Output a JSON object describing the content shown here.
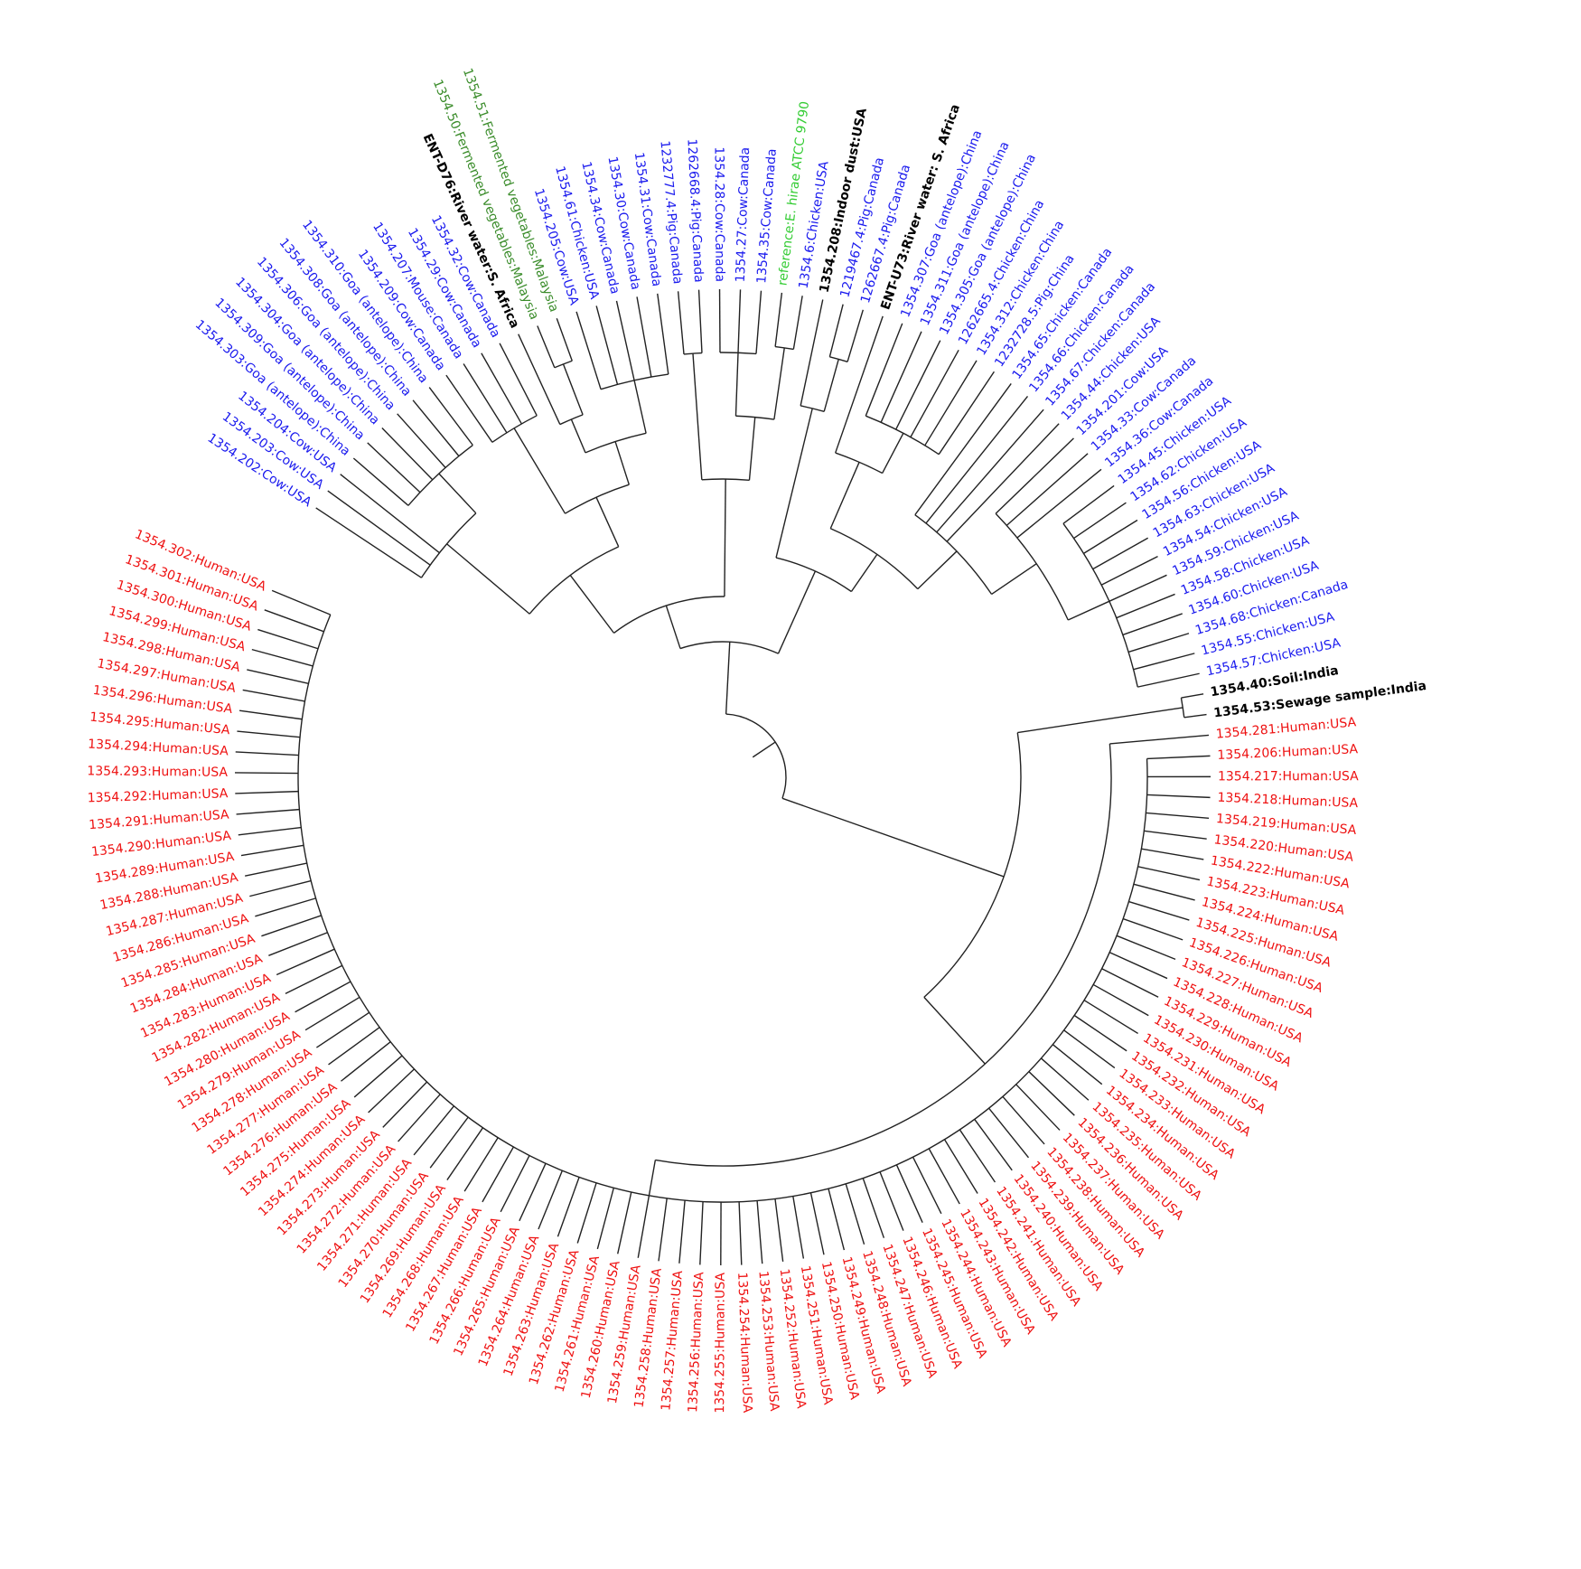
{
  "leaves": [
    {
      "label": "1354.302:Human:USA",
      "color": "#ee1111"
    },
    {
      "label": "1354.301:Human:USA",
      "color": "#ee1111"
    },
    {
      "label": "1354.300:Human:USA",
      "color": "#ee1111"
    },
    {
      "label": "1354.299:Human:USA",
      "color": "#ee1111"
    },
    {
      "label": "1354.298:Human:USA",
      "color": "#ee1111"
    },
    {
      "label": "1354.297:Human:USA",
      "color": "#ee1111"
    },
    {
      "label": "1354.296:Human:USA",
      "color": "#ee1111"
    },
    {
      "label": "1354.295:Human:USA",
      "color": "#ee1111"
    },
    {
      "label": "1354.294:Human:USA",
      "color": "#ee1111"
    },
    {
      "label": "1354.293:Human:USA",
      "color": "#ee1111"
    },
    {
      "label": "1354.292:Human:USA",
      "color": "#ee1111"
    },
    {
      "label": "1354.291:Human:USA",
      "color": "#ee1111"
    },
    {
      "label": "1354.290:Human:USA",
      "color": "#ee1111"
    },
    {
      "label": "1354.289:Human:USA",
      "color": "#ee1111"
    },
    {
      "label": "1354.288:Human:USA",
      "color": "#ee1111"
    },
    {
      "label": "1354.287:Human:USA",
      "color": "#ee1111"
    },
    {
      "label": "1354.286:Human:USA",
      "color": "#ee1111"
    },
    {
      "label": "1354.285:Human:USA",
      "color": "#ee1111"
    },
    {
      "label": "1354.284:Human:USA",
      "color": "#ee1111"
    },
    {
      "label": "1354.283:Human:USA",
      "color": "#ee1111"
    },
    {
      "label": "1354.282:Human:USA",
      "color": "#ee1111"
    },
    {
      "label": "1354.280:Human:USA",
      "color": "#ee1111"
    },
    {
      "label": "1354.279:Human:USA",
      "color": "#ee1111"
    },
    {
      "label": "1354.278:Human:USA",
      "color": "#ee1111"
    },
    {
      "label": "1354.277:Human:USA",
      "color": "#ee1111"
    },
    {
      "label": "1354.276:Human:USA",
      "color": "#ee1111"
    },
    {
      "label": "1354.275:Human:USA",
      "color": "#ee1111"
    },
    {
      "label": "1354.274:Human:USA",
      "color": "#ee1111"
    },
    {
      "label": "1354.273:Human:USA",
      "color": "#ee1111"
    },
    {
      "label": "1354.272:Human:USA",
      "color": "#ee1111"
    },
    {
      "label": "1354.271:Human:USA",
      "color": "#ee1111"
    },
    {
      "label": "1354.270:Human:USA",
      "color": "#ee1111"
    },
    {
      "label": "1354.269:Human:USA",
      "color": "#ee1111"
    },
    {
      "label": "1354.268:Human:USA",
      "color": "#ee1111"
    },
    {
      "label": "1354.267:Human:USA",
      "color": "#ee1111"
    },
    {
      "label": "1354.266:Human:USA",
      "color": "#ee1111"
    },
    {
      "label": "1354.265:Human:USA",
      "color": "#ee1111"
    },
    {
      "label": "1354.264:Human:USA",
      "color": "#ee1111"
    },
    {
      "label": "1354.263:Human:USA",
      "color": "#ee1111"
    },
    {
      "label": "1354.262:Human:USA",
      "color": "#ee1111"
    },
    {
      "label": "1354.261:Human:USA",
      "color": "#ee1111"
    },
    {
      "label": "1354.260:Human:USA",
      "color": "#ee1111"
    },
    {
      "label": "1354.259:Human:USA",
      "color": "#ee1111"
    },
    {
      "label": "1354.258:Human:USA",
      "color": "#ee1111"
    },
    {
      "label": "1354.257:Human:USA",
      "color": "#ee1111"
    },
    {
      "label": "1354.256:Human:USA",
      "color": "#ee1111"
    },
    {
      "label": "1354.255:Human:USA",
      "color": "#ee1111"
    },
    {
      "label": "1354.254:Human:USA",
      "color": "#ee1111"
    },
    {
      "label": "1354.253:Human:USA",
      "color": "#ee1111"
    },
    {
      "label": "1354.252:Human:USA",
      "color": "#ee1111"
    },
    {
      "label": "1354.251:Human:USA",
      "color": "#ee1111"
    },
    {
      "label": "1354.250:Human:USA",
      "color": "#ee1111"
    },
    {
      "label": "1354.249:Human:USA",
      "color": "#ee1111"
    },
    {
      "label": "1354.248:Human:USA",
      "color": "#ee1111"
    },
    {
      "label": "1354.247:Human:USA",
      "color": "#ee1111"
    },
    {
      "label": "1354.246:Human:USA",
      "color": "#ee1111"
    },
    {
      "label": "1354.245:Human:USA",
      "color": "#ee1111"
    },
    {
      "label": "1354.244:Human:USA",
      "color": "#ee1111"
    },
    {
      "label": "1354.243:Human:USA",
      "color": "#ee1111"
    },
    {
      "label": "1354.242:Human:USA",
      "color": "#ee1111"
    },
    {
      "label": "1354.241:Human:USA",
      "color": "#ee1111"
    },
    {
      "label": "1354.240:Human:USA",
      "color": "#ee1111"
    },
    {
      "label": "1354.239:Human:USA",
      "color": "#ee1111"
    },
    {
      "label": "1354.238:Human:USA",
      "color": "#ee1111"
    },
    {
      "label": "1354.237:Human:USA",
      "color": "#ee1111"
    },
    {
      "label": "1354.236:Human:USA",
      "color": "#ee1111"
    },
    {
      "label": "1354.235:Human:USA",
      "color": "#ee1111"
    },
    {
      "label": "1354.234:Human:USA",
      "color": "#ee1111"
    },
    {
      "label": "1354.233:Human:USA",
      "color": "#ee1111"
    },
    {
      "label": "1354.232:Human:USA",
      "color": "#ee1111"
    },
    {
      "label": "1354.231:Human:USA",
      "color": "#ee1111"
    },
    {
      "label": "1354.230:Human:USA",
      "color": "#ee1111"
    },
    {
      "label": "1354.229:Human:USA",
      "color": "#ee1111"
    },
    {
      "label": "1354.228:Human:USA",
      "color": "#ee1111"
    },
    {
      "label": "1354.227:Human:USA",
      "color": "#ee1111"
    },
    {
      "label": "1354.226:Human:USA",
      "color": "#ee1111"
    },
    {
      "label": "1354.225:Human:USA",
      "color": "#ee1111"
    },
    {
      "label": "1354.224:Human:USA",
      "color": "#ee1111"
    },
    {
      "label": "1354.223:Human:USA",
      "color": "#ee1111"
    },
    {
      "label": "1354.222:Human:USA",
      "color": "#ee1111"
    },
    {
      "label": "1354.220:Human:USA",
      "color": "#ee1111"
    },
    {
      "label": "1354.219:Human:USA",
      "color": "#ee1111"
    },
    {
      "label": "1354.218:Human:USA",
      "color": "#ee1111"
    },
    {
      "label": "1354.217:Human:USA",
      "color": "#ee1111"
    },
    {
      "label": "1354.206:Human:USA",
      "color": "#ee1111"
    },
    {
      "label": "1354.281:Human:USA",
      "color": "#ee1111"
    },
    {
      "label": "1354.53:Sewage sample:India",
      "color": "#000000"
    },
    {
      "label": "1354.40:Soil:India",
      "color": "#000000"
    },
    {
      "label": "1354.57:Chicken:USA",
      "color": "#1a1aee"
    },
    {
      "label": "1354.55:Chicken:USA",
      "color": "#1a1aee"
    },
    {
      "label": "1354.68:Chicken:Canada",
      "color": "#1a1aee"
    },
    {
      "label": "1354.60:Chicken:USA",
      "color": "#1a1aee"
    },
    {
      "label": "1354.58:Chicken:USA",
      "color": "#1a1aee"
    },
    {
      "label": "1354.59:Chicken:USA",
      "color": "#1a1aee"
    },
    {
      "label": "1354.54:Chicken:USA",
      "color": "#1a1aee"
    },
    {
      "label": "1354.63:Chicken:USA",
      "color": "#1a1aee"
    },
    {
      "label": "1354.56:Chicken:USA",
      "color": "#1a1aee"
    },
    {
      "label": "1354.62:Chicken:USA",
      "color": "#1a1aee"
    },
    {
      "label": "1354.45:Chicken:USA",
      "color": "#1a1aee"
    },
    {
      "label": "1354.36:Cow:Canada",
      "color": "#1a1aee"
    },
    {
      "label": "1354.33:Cow:Canada",
      "color": "#1a1aee"
    },
    {
      "label": "1354.201:Cow:USA",
      "color": "#1a1aee"
    },
    {
      "label": "1354.44:Chicken:USA",
      "color": "#1a1aee"
    },
    {
      "label": "1354.67:Chicken:Canada",
      "color": "#1a1aee"
    },
    {
      "label": "1354.66:Chicken:Canada",
      "color": "#1a1aee"
    },
    {
      "label": "1354.65:Chicken:Canada",
      "color": "#1a1aee"
    },
    {
      "label": "1232728.5:Pig:China",
      "color": "#1a1aee"
    },
    {
      "label": "1354.312:Chicken:China",
      "color": "#1a1aee"
    },
    {
      "label": "1262665.4:Chicken:China",
      "color": "#1a1aee"
    },
    {
      "label": "1354.305:Goa (antelope):China",
      "color": "#1a1aee"
    },
    {
      "label": "1354.311:Goa (antelope):China",
      "color": "#1a1aee"
    },
    {
      "label": "1354.307:Goa (antelope):China",
      "color": "#1a1aee"
    },
    {
      "label": "ENT-U73:River water: S. Africa",
      "color": "#000000"
    },
    {
      "label": "1262667.4:Pig:Canada",
      "color": "#1a1aee"
    },
    {
      "label": "1219467.4:Pig:Canada",
      "color": "#1a1aee"
    },
    {
      "label": "1354.208:Indoor dust:USA",
      "color": "#000000"
    },
    {
      "label": "1354.6:Chicken:USA",
      "color": "#1a1aee"
    },
    {
      "label": "reference:E. hirae ATCC 9790",
      "color": "#33cc33"
    },
    {
      "label": "1354.35:Cow:Canada",
      "color": "#1a1aee"
    },
    {
      "label": "1354.27:Cow:Canada",
      "color": "#1a1aee"
    },
    {
      "label": "1354.28:Cow:Canada",
      "color": "#1a1aee"
    },
    {
      "label": "1262668.4:Pig:Canada",
      "color": "#1a1aee"
    },
    {
      "label": "1232777.4:Pig:Canada",
      "color": "#1a1aee"
    },
    {
      "label": "1354.31:Cow:Canada",
      "color": "#1a1aee"
    },
    {
      "label": "1354.30:Cow:Canada",
      "color": "#1a1aee"
    },
    {
      "label": "1354.34:Cow:Canada",
      "color": "#1a1aee"
    },
    {
      "label": "1354.61:Chicken:USA",
      "color": "#1a1aee"
    },
    {
      "label": "1354.205:Cow:USA",
      "color": "#1a1aee"
    },
    {
      "label": "1354.51:Fermented vegetables:Malaysia",
      "color": "#3a8c2a"
    },
    {
      "label": "1354.50:Fermented vegetables:Malaysia",
      "color": "#3a8c2a"
    },
    {
      "label": "ENT-D76:River water:S. Africa",
      "color": "#000000"
    },
    {
      "label": "1354.32:Cow:Canada",
      "color": "#1a1aee"
    },
    {
      "label": "1354.29:Cow:Canada",
      "color": "#1a1aee"
    },
    {
      "label": "1354.207:Mouse:Canada",
      "color": "#1a1aee"
    },
    {
      "label": "1354.209:Cow:Canada",
      "color": "#1a1aee"
    },
    {
      "label": "1354.310:Goa (antelope):China",
      "color": "#1a1aee"
    },
    {
      "label": "1354.308:Goa (antelope):China",
      "color": "#1a1aee"
    },
    {
      "label": "1354.306:Goa (antelope):China",
      "color": "#1a1aee"
    },
    {
      "label": "1354.304:Goa (antelope):China",
      "color": "#1a1aee"
    },
    {
      "label": "1354.309:Goa (antelope):China",
      "color": "#1a1aee"
    },
    {
      "label": "1354.303:Goa (antelope):China",
      "color": "#1a1aee"
    },
    {
      "label": "1354.204:Cow:USA",
      "color": "#1a1aee"
    },
    {
      "label": "1354.203:Cow:USA",
      "color": "#1a1aee"
    },
    {
      "label": "1354.202:Cow:USA",
      "color": "#1a1aee"
    }
  ]
}
